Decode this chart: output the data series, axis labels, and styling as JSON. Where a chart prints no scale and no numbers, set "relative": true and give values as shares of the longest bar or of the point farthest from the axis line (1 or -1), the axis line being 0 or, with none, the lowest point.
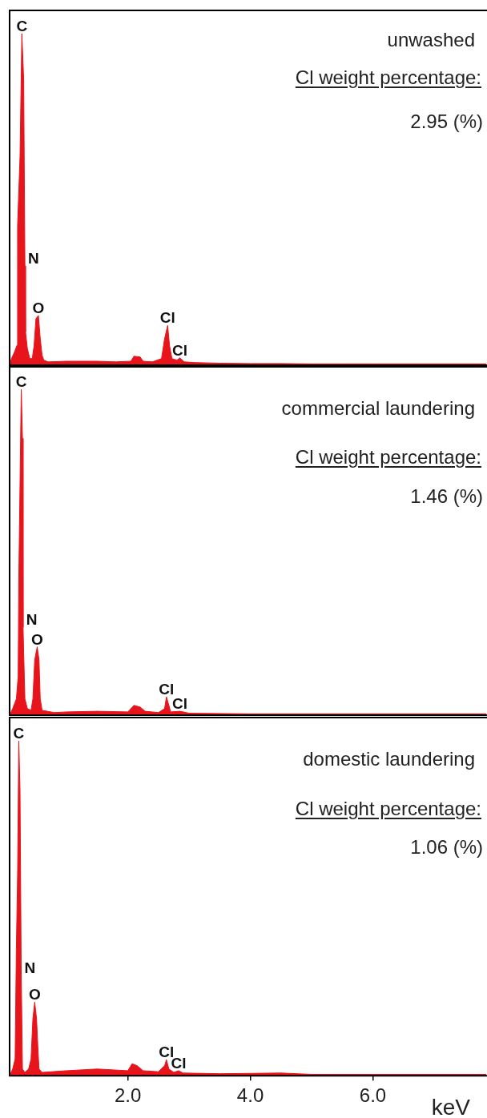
{
  "chart_data": [
    {
      "type": "area",
      "title": "unwashed",
      "subtitle": "Cl weight percentage:",
      "relative": true,
      "xlim": [
        0.07,
        7.85
      ],
      "tick_labels": false,
      "annotations": [
        "2.95 (%)",
        {
          "text": "C",
          "x": 0.27,
          "y": 1.0
        },
        {
          "text": "N",
          "x": 0.32,
          "y": 0.3
        },
        {
          "text": "O",
          "x": 0.54,
          "y": 0.15
        },
        {
          "text": "Cl",
          "x": 2.65,
          "y": 0.12
        },
        {
          "text": "Cl",
          "x": 2.85,
          "y": 0.022
        }
      ],
      "series": [
        {
          "color": "#e8141c",
          "x": [
            0.07,
            0.1,
            0.15,
            0.19,
            0.2,
            0.24,
            0.27,
            0.3,
            0.32,
            0.33,
            0.36,
            0.4,
            0.44,
            0.47,
            0.5,
            0.54,
            0.57,
            0.6,
            0.63,
            0.7,
            1.0,
            1.5,
            1.8,
            2.05,
            2.1,
            2.2,
            2.25,
            2.4,
            2.55,
            2.6,
            2.65,
            2.68,
            2.72,
            2.8,
            2.85,
            2.92,
            3.1,
            3.5,
            4.0,
            4.5,
            5.0,
            5.5,
            6.0,
            7.0,
            7.85
          ],
          "values": [
            0,
            0.02,
            0.04,
            0.06,
            0.42,
            0.63,
            1.0,
            0.86,
            0.3,
            0.1,
            0.05,
            0.02,
            0.02,
            0.06,
            0.14,
            0.15,
            0.08,
            0.03,
            0.015,
            0.01,
            0.012,
            0.012,
            0.01,
            0.012,
            0.027,
            0.025,
            0.012,
            0.01,
            0.02,
            0.08,
            0.12,
            0.06,
            0.02,
            0.015,
            0.022,
            0.01,
            0.008,
            0.006,
            0.005,
            0.005,
            0.004,
            0.004,
            0.004,
            0.004,
            0.004
          ]
        }
      ]
    },
    {
      "type": "area",
      "title": "commercial laundering",
      "subtitle": "Cl weight percentage:",
      "relative": true,
      "xlim": [
        0.07,
        7.85
      ],
      "tick_labels": false,
      "annotations": [
        "1.46 (%)",
        {
          "text": "C",
          "x": 0.26,
          "y": 1.0
        },
        {
          "text": "N",
          "x": 0.29,
          "y": 0.27
        },
        {
          "text": "O",
          "x": 0.52,
          "y": 0.21
        },
        {
          "text": "Cl",
          "x": 2.63,
          "y": 0.056
        },
        {
          "text": "Cl",
          "x": 2.85,
          "y": 0.012
        }
      ],
      "series": [
        {
          "color": "#e8141c",
          "x": [
            0.07,
            0.12,
            0.18,
            0.21,
            0.22,
            0.26,
            0.28,
            0.29,
            0.3,
            0.32,
            0.36,
            0.42,
            0.45,
            0.48,
            0.52,
            0.55,
            0.57,
            0.6,
            0.8,
            1.0,
            1.5,
            2.0,
            2.1,
            2.2,
            2.28,
            2.5,
            2.6,
            2.63,
            2.67,
            2.7,
            2.85,
            3.0,
            4.0,
            5.0,
            6.0,
            7.85
          ],
          "values": [
            0,
            0.02,
            0.05,
            0.12,
            0.42,
            1.0,
            0.85,
            0.27,
            0.19,
            0.05,
            0.02,
            0.015,
            0.05,
            0.17,
            0.21,
            0.17,
            0.05,
            0.015,
            0.008,
            0.01,
            0.012,
            0.01,
            0.03,
            0.025,
            0.012,
            0.008,
            0.02,
            0.056,
            0.03,
            0.01,
            0.012,
            0.006,
            0.004,
            0.004,
            0.004,
            0.004
          ]
        }
      ]
    },
    {
      "type": "area",
      "title": "domestic laundering",
      "subtitle": "Cl weight percentage:",
      "xlabel": "keV",
      "relative": true,
      "xlim": [
        0.07,
        7.85
      ],
      "xticks": [
        {
          "value": 2,
          "label": "2.0"
        },
        {
          "value": 4,
          "label": "4.0"
        },
        {
          "value": 6,
          "label": "6.0"
        }
      ],
      "tick_labels": "x",
      "annotations": [
        "1.06 (%)",
        {
          "text": "C",
          "x": 0.22,
          "y": 1.0
        },
        {
          "text": "N",
          "x": 0.26,
          "y": 0.3
        },
        {
          "text": "O",
          "x": 0.48,
          "y": 0.22
        },
        {
          "text": "Cl",
          "x": 2.63,
          "y": 0.048
        },
        {
          "text": "Cl",
          "x": 2.83,
          "y": 0.015
        }
      ],
      "series": [
        {
          "color": "#e8141c",
          "x": [
            0.07,
            0.12,
            0.16,
            0.18,
            0.2,
            0.22,
            0.24,
            0.26,
            0.28,
            0.32,
            0.38,
            0.42,
            0.45,
            0.48,
            0.51,
            0.53,
            0.55,
            0.6,
            1.0,
            1.5,
            2.0,
            2.07,
            2.15,
            2.25,
            2.5,
            2.6,
            2.63,
            2.67,
            2.75,
            2.83,
            2.9,
            3.5,
            4.5,
            5.0,
            6.0,
            7.0,
            7.85
          ],
          "values": [
            0,
            0.02,
            0.05,
            0.38,
            0.6,
            1.0,
            0.85,
            0.3,
            0.02,
            0.01,
            0.02,
            0.05,
            0.17,
            0.22,
            0.17,
            0.09,
            0.02,
            0.01,
            0.015,
            0.02,
            0.015,
            0.036,
            0.03,
            0.015,
            0.012,
            0.03,
            0.048,
            0.02,
            0.01,
            0.015,
            0.008,
            0.006,
            0.008,
            0.004,
            0.004,
            0.004,
            0.004
          ]
        }
      ]
    }
  ]
}
